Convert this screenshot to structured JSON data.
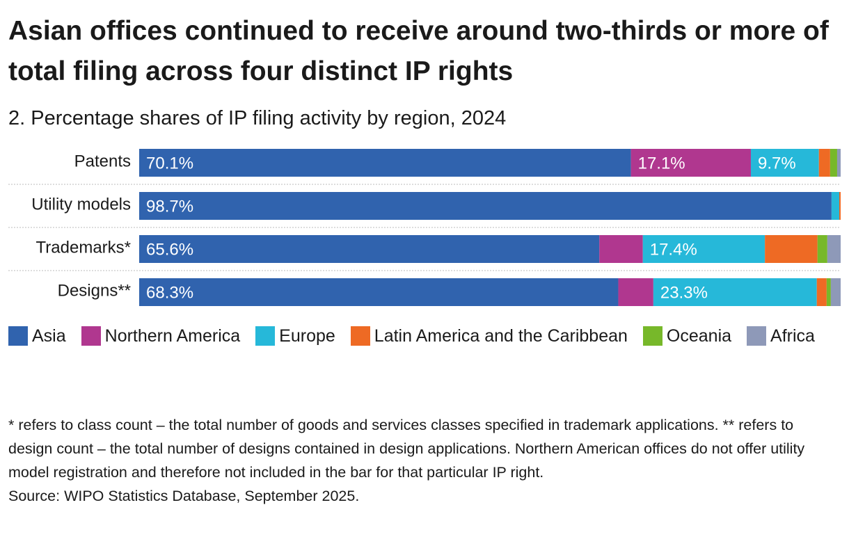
{
  "chart_data": {
    "type": "stacked-bar-horizontal",
    "title": "Asian offices continued to receive around two-thirds or more of total filing across four distinct IP rights",
    "subtitle": "2. Percentage shares of IP filing activity by region, 2024",
    "categories": [
      "Patents",
      "Utility models",
      "Trademarks*",
      "Designs**"
    ],
    "xlim": [
      0,
      100
    ],
    "series": [
      {
        "name": "Asia",
        "color": "#3063ae",
        "values": [
          70.1,
          98.7,
          65.6,
          68.3
        ],
        "value_labels": [
          "70.1%",
          "98.7%",
          "65.6%",
          "68.3%"
        ]
      },
      {
        "name": "Northern America",
        "color": "#b0378f",
        "values": [
          17.1,
          null,
          6.2,
          5.0
        ],
        "value_labels": [
          "17.1%",
          null,
          null,
          null
        ]
      },
      {
        "name": "Europe",
        "color": "#26b8d9",
        "values": [
          9.7,
          1.1,
          17.4,
          23.3
        ],
        "value_labels": [
          "9.7%",
          null,
          "17.4%",
          "23.3%"
        ]
      },
      {
        "name": "Latin America and the Caribbean",
        "color": "#ee6a24",
        "values": [
          1.6,
          0.2,
          7.5,
          1.4
        ]
      },
      {
        "name": "Oceania",
        "color": "#77b82a",
        "values": [
          1.0,
          0,
          1.4,
          0.6
        ]
      },
      {
        "name": "Africa",
        "color": "#8e99b8",
        "values": [
          0.5,
          0,
          1.9,
          1.4
        ]
      }
    ],
    "note": "* refers to class count – the total number of goods and services classes specified in trademark applications. ** refers to design count – the total number of designs contained in design applications. Northern American offices do not offer utility model registration and therefore not included in the bar for that particular IP right.",
    "source": "Source: WIPO Statistics Database, September 2025."
  }
}
